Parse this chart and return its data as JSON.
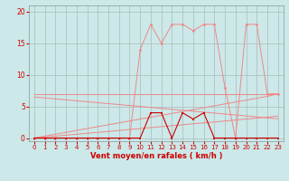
{
  "x": [
    0,
    1,
    2,
    3,
    4,
    5,
    6,
    7,
    8,
    9,
    10,
    11,
    12,
    13,
    14,
    15,
    16,
    17,
    18,
    19,
    20,
    21,
    22,
    23
  ],
  "wind_avg": [
    0,
    0,
    0,
    0,
    0,
    0,
    0,
    0,
    0,
    0,
    0,
    4,
    4,
    0,
    4,
    3,
    4,
    0,
    0,
    0,
    0,
    0,
    0,
    0
  ],
  "wind_gust": [
    0,
    0,
    0,
    0,
    0,
    0,
    0,
    0,
    0,
    0,
    14,
    18,
    15,
    18,
    18,
    17,
    18,
    18,
    8,
    0,
    18,
    18,
    7,
    7
  ],
  "trend_a": [
    7,
    7,
    7,
    7,
    7,
    7,
    7,
    7,
    7,
    7,
    7,
    7,
    7,
    7,
    7,
    7,
    7,
    7,
    7,
    7,
    7,
    7,
    7,
    7
  ],
  "trend_b": [
    6.5,
    6.35,
    6.2,
    6.05,
    5.9,
    5.75,
    5.6,
    5.45,
    5.3,
    5.15,
    5.0,
    4.85,
    4.7,
    4.55,
    4.4,
    4.25,
    4.1,
    3.95,
    3.8,
    3.65,
    3.5,
    3.35,
    3.2,
    3.05
  ],
  "trend_c": [
    0,
    0.3,
    0.6,
    0.9,
    1.2,
    1.5,
    1.8,
    2.1,
    2.4,
    2.7,
    3.0,
    3.3,
    3.6,
    3.9,
    4.2,
    4.5,
    4.8,
    5.1,
    5.4,
    5.7,
    6.0,
    6.3,
    6.6,
    7.0
  ],
  "trend_d": [
    0,
    0.15,
    0.3,
    0.45,
    0.6,
    0.75,
    0.9,
    1.05,
    1.2,
    1.35,
    1.5,
    1.65,
    1.8,
    1.95,
    2.1,
    2.25,
    2.4,
    2.55,
    2.7,
    2.85,
    3.0,
    3.15,
    3.3,
    3.5
  ],
  "bg_color": "#cce8e8",
  "grid_color": "#aabbbb",
  "line_color_dark": "#cc0000",
  "line_color_light": "#ee8888",
  "ylabel_values": [
    0,
    5,
    10,
    15,
    20
  ],
  "xlabel": "Vent moyen/en rafales ( km/h )",
  "ylim": [
    -0.5,
    21
  ],
  "xlim": [
    -0.5,
    23.5
  ]
}
